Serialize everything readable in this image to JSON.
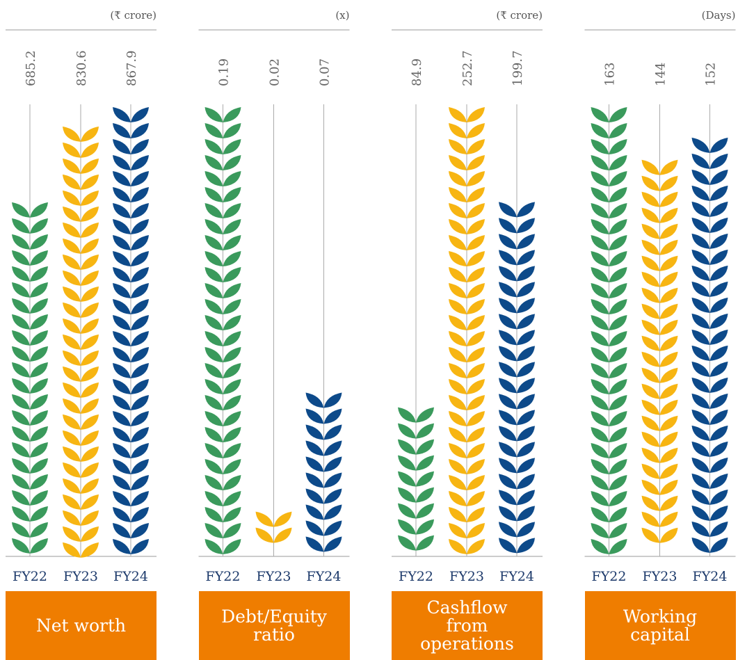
{
  "chart_data": [
    {
      "type": "bar",
      "title": "Net worth",
      "unit": "(₹ crore)",
      "categories": [
        "FY22",
        "FY23",
        "FY24"
      ],
      "values": [
        685.2,
        830.6,
        867.9
      ],
      "colors": [
        "#3a9a5c",
        "#f7b512",
        "#0d4a8a"
      ],
      "ylim": [
        0,
        867.9
      ]
    },
    {
      "type": "bar",
      "title": "Debt/Equity ratio",
      "unit": "(x)",
      "categories": [
        "FY22",
        "FY23",
        "FY24"
      ],
      "values": [
        0.19,
        0.02,
        0.07
      ],
      "colors": [
        "#3a9a5c",
        "#f7b512",
        "#0d4a8a"
      ],
      "ylim": [
        0,
        0.19
      ]
    },
    {
      "type": "bar",
      "title": "Cashflow from operations",
      "unit": "(₹ crore)",
      "categories": [
        "FY22",
        "FY23",
        "FY24"
      ],
      "values": [
        84.9,
        252.7,
        199.7
      ],
      "colors": [
        "#3a9a5c",
        "#f7b512",
        "#0d4a8a"
      ],
      "ylim": [
        0,
        252.7
      ]
    },
    {
      "type": "bar",
      "title": "Working capital",
      "unit": "(Days)",
      "categories": [
        "FY22",
        "FY23",
        "FY24"
      ],
      "values": [
        163,
        144,
        152
      ],
      "colors": [
        "#3a9a5c",
        "#f7b512",
        "#0d4a8a"
      ],
      "ylim": [
        0,
        163
      ]
    }
  ]
}
